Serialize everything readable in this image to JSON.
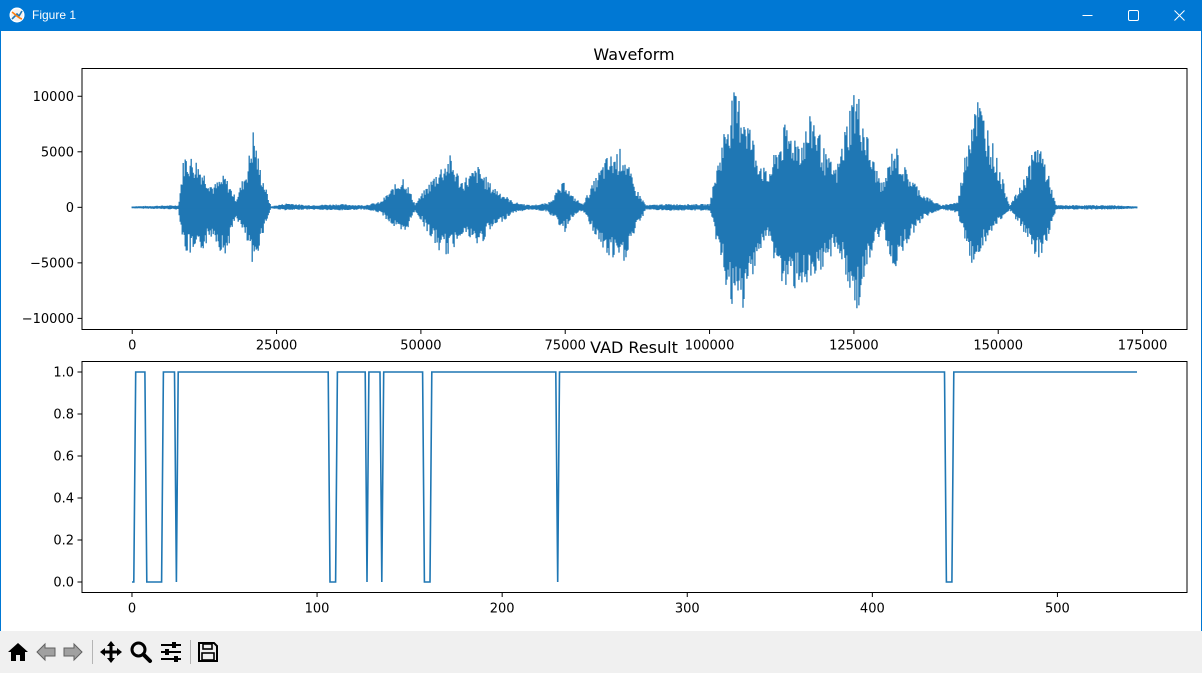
{
  "window": {
    "title": "Figure 1",
    "accent_color": "#0078d4",
    "controls": [
      "minimize-icon",
      "maximize-icon",
      "close-icon"
    ]
  },
  "toolbar": {
    "icons": [
      "home-icon",
      "back-arrow-icon",
      "forward-arrow-icon",
      "pan-icon",
      "zoom-icon",
      "configure-subplots-icon",
      "save-icon"
    ]
  },
  "chart_data": [
    {
      "type": "line",
      "title": "Waveform",
      "xlabel": "",
      "ylabel": "",
      "xlim": [
        -8700,
        182700
      ],
      "ylim": [
        -11000,
        12500
      ],
      "x_ticks": [
        0,
        25000,
        50000,
        75000,
        100000,
        125000,
        150000,
        175000
      ],
      "x_tick_labels": [
        "0",
        "25000",
        "50000",
        "75000",
        "100000",
        "125000",
        "150000",
        "175000"
      ],
      "y_ticks": [
        -10000,
        -5000,
        0,
        5000,
        10000
      ],
      "y_tick_labels": [
        "−10000",
        "−5000",
        "0",
        "5000",
        "10000"
      ],
      "grid": false,
      "color": "#1f77b4",
      "samples": 174000,
      "envelope": {
        "x": [
          0,
          8000,
          9000,
          11000,
          14000,
          16000,
          18000,
          20000,
          21000,
          22000,
          24000,
          27000,
          30000,
          36000,
          40000,
          43000,
          47000,
          49000,
          53000,
          55000,
          57000,
          60000,
          62000,
          66000,
          69000,
          72000,
          75000,
          76000,
          78000,
          82000,
          85000,
          87000,
          89000,
          92000,
          100000,
          103000,
          104000,
          106000,
          108000,
          110000,
          113000,
          116000,
          118000,
          120000,
          122000,
          125000,
          126000,
          128000,
          130000,
          132000,
          134000,
          137000,
          140000,
          143000,
          145000,
          146000,
          148000,
          152000,
          154000,
          157000,
          158000,
          160000,
          170000,
          174000
        ],
        "upper": [
          100,
          200,
          5000,
          4500,
          2000,
          3000,
          800,
          4000,
          7400,
          4000,
          100,
          400,
          200,
          300,
          200,
          500,
          3000,
          300,
          3500,
          4800,
          2500,
          3800,
          2200,
          500,
          200,
          400,
          2500,
          1200,
          300,
          4500,
          5500,
          2000,
          200,
          300,
          300,
          8500,
          10500,
          9800,
          5500,
          3000,
          7500,
          6500,
          9000,
          5000,
          3500,
          11200,
          10000,
          5000,
          2000,
          6000,
          3500,
          1200,
          200,
          500,
          7500,
          11000,
          8000,
          200,
          2000,
          6500,
          4500,
          200,
          200,
          100
        ],
        "lower": [
          -100,
          -200,
          -4000,
          -4800,
          -2500,
          -4800,
          -900,
          -3500,
          -6200,
          -3500,
          -100,
          -300,
          -200,
          -300,
          -200,
          -500,
          -2800,
          -300,
          -4000,
          -4500,
          -2400,
          -3700,
          -2200,
          -500,
          -200,
          -400,
          -2300,
          -1000,
          -300,
          -4500,
          -5400,
          -2500,
          -200,
          -300,
          -300,
          -7500,
          -9800,
          -9400,
          -5000,
          -2800,
          -7800,
          -7000,
          -8000,
          -5500,
          -3500,
          -9400,
          -9000,
          -4500,
          -2000,
          -5800,
          -3400,
          -1000,
          -200,
          -500,
          -5000,
          -5200,
          -3000,
          -200,
          -2000,
          -5000,
          -4000,
          -200,
          -200,
          -100
        ]
      }
    },
    {
      "type": "line",
      "title": "VAD Result",
      "xlabel": "",
      "ylabel": "",
      "xlim": [
        -27,
        570
      ],
      "ylim": [
        -0.05,
        1.05
      ],
      "x_ticks": [
        0,
        100,
        200,
        300,
        400,
        500
      ],
      "x_tick_labels": [
        "0",
        "100",
        "200",
        "300",
        "400",
        "500"
      ],
      "y_ticks": [
        0.0,
        0.2,
        0.4,
        0.6,
        0.8,
        1.0
      ],
      "y_tick_labels": [
        "0.0",
        "0.2",
        "0.4",
        "0.6",
        "0.8",
        "1.0"
      ],
      "grid": false,
      "color": "#1f77b4",
      "x": [
        0,
        1,
        2,
        7,
        8,
        16,
        17,
        23,
        24,
        25,
        106,
        107,
        110,
        111,
        126,
        127,
        128,
        134,
        135,
        136,
        157,
        158,
        161,
        162,
        229,
        230,
        231,
        439,
        440,
        443,
        444,
        543
      ],
      "y": [
        0,
        0,
        1,
        1,
        0,
        0,
        1,
        1,
        0,
        1,
        1,
        0,
        0,
        1,
        1,
        0,
        1,
        1,
        0,
        1,
        1,
        0,
        0,
        1,
        1,
        0,
        1,
        1,
        0,
        0,
        1,
        1
      ]
    }
  ]
}
